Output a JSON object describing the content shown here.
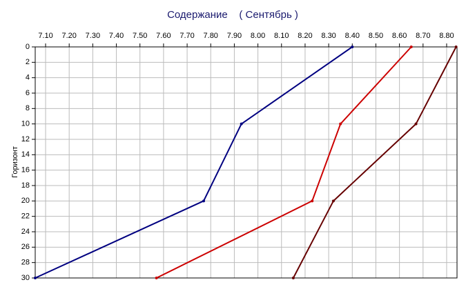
{
  "chart_data": {
    "type": "line",
    "title": "Содержание    ( Сентябрь )",
    "y_label": "Горизонт",
    "xlim": [
      7.056,
      8.844
    ],
    "ylim": [
      30,
      0
    ],
    "xticks": [
      {
        "value": 7.1,
        "label": "7.10"
      },
      {
        "value": 7.2,
        "label": "7.20"
      },
      {
        "value": 7.3,
        "label": "7.30"
      },
      {
        "value": 7.4,
        "label": "7.40"
      },
      {
        "value": 7.5,
        "label": "7.50"
      },
      {
        "value": 7.6,
        "label": "7.60"
      },
      {
        "value": 7.7,
        "label": "7.70"
      },
      {
        "value": 7.8,
        "label": "7.80"
      },
      {
        "value": 7.9,
        "label": "7.90"
      },
      {
        "value": 8.0,
        "label": "8.00"
      },
      {
        "value": 8.1,
        "label": "8.10"
      },
      {
        "value": 8.2,
        "label": "8.20"
      },
      {
        "value": 8.3,
        "label": "8.30"
      },
      {
        "value": 8.4,
        "label": "8.40"
      },
      {
        "value": 8.5,
        "label": "8.50"
      },
      {
        "value": 8.6,
        "label": "8.60"
      },
      {
        "value": 8.7,
        "label": "8.70"
      },
      {
        "value": 8.8,
        "label": "8.80"
      }
    ],
    "yticks": [
      0,
      2,
      4,
      6,
      8,
      10,
      12,
      14,
      16,
      18,
      20,
      22,
      24,
      26,
      28,
      30
    ],
    "grid": true,
    "series": [
      {
        "color": "#000080",
        "x": [
          8.4,
          7.93,
          7.77,
          7.056
        ],
        "y": [
          0,
          10,
          20,
          30
        ]
      },
      {
        "color": "#cc0000",
        "x": [
          8.65,
          8.35,
          8.23,
          7.57
        ],
        "y": [
          0,
          10,
          20,
          30
        ]
      },
      {
        "color": "#660000",
        "x": [
          8.84,
          8.67,
          8.32,
          8.15
        ],
        "y": [
          0,
          10,
          20,
          30
        ]
      }
    ]
  }
}
